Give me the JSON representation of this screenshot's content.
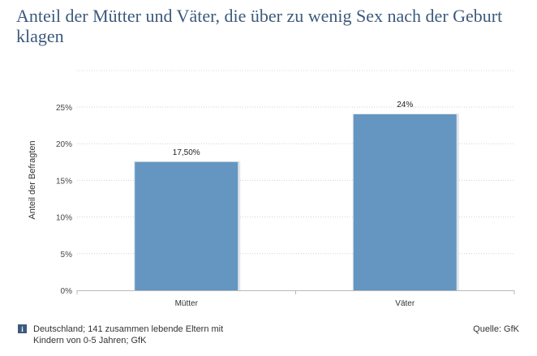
{
  "chart_data": {
    "type": "bar",
    "title": "Anteil der Mütter und Väter, die über zu wenig Sex nach der Geburt klagen",
    "ylabel": "Anteil der Befragten",
    "xlabel": "",
    "categories": [
      "Mütter",
      "Väter"
    ],
    "values": [
      17.5,
      24
    ],
    "value_labels": [
      "17,50%",
      "24%"
    ],
    "ylim": [
      0,
      25
    ],
    "yticks": [
      0,
      5,
      10,
      15,
      20,
      25
    ],
    "ytick_labels": [
      "0%",
      "5%",
      "10%",
      "15%",
      "20%",
      "25%"
    ],
    "grid": true,
    "bar_color": "#6496c1"
  },
  "footer": {
    "note_icon": "info-icon",
    "note_line1": "Deutschland; 141 zusammen lebende Eltern mit",
    "note_line2": "Kindern von 0-5 Jahren; GfK",
    "source": "Quelle: GfK"
  }
}
